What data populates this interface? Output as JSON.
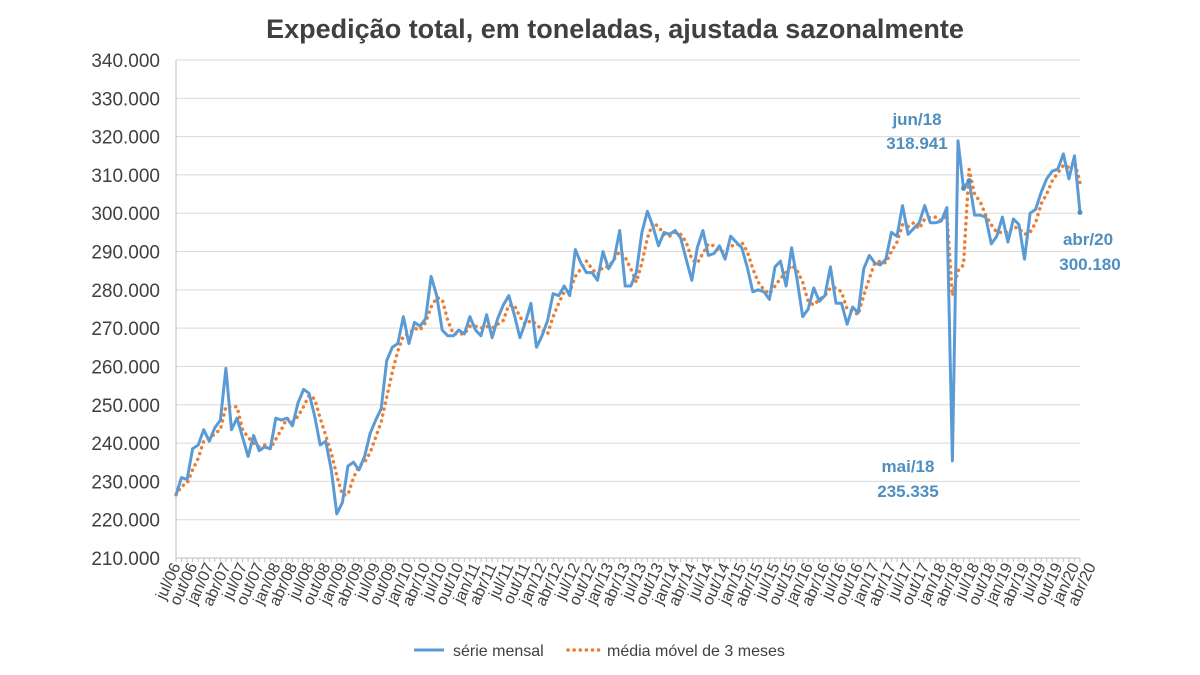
{
  "chart_data": {
    "type": "line",
    "title": "Expedição total, em toneladas, ajustada sazonalmente",
    "xlabel": "",
    "ylabel": "",
    "ylim": [
      210000,
      340000
    ],
    "yticks": [
      210000,
      220000,
      230000,
      240000,
      250000,
      260000,
      270000,
      280000,
      290000,
      300000,
      310000,
      320000,
      330000,
      340000
    ],
    "ytick_labels": [
      "210.000",
      "220.000",
      "230.000",
      "240.000",
      "250.000",
      "260.000",
      "270.000",
      "280.000",
      "290.000",
      "300.000",
      "310.000",
      "320.000",
      "330.000",
      "340.000"
    ],
    "x_start": "jul/06",
    "x_end": "abr/20",
    "x_tick_labels": [
      "jul/06",
      "out/06",
      "jan/07",
      "abr/07",
      "jul/07",
      "out/07",
      "jan/08",
      "abr/08",
      "jul/08",
      "out/08",
      "jan/09",
      "abr/09",
      "jul/09",
      "out/09",
      "jan/10",
      "abr/10",
      "jul/10",
      "out/10",
      "jan/11",
      "abr/11",
      "jul/11",
      "out/11",
      "jan/12",
      "abr/12",
      "jul/12",
      "out/12",
      "jan/13",
      "abr/13",
      "jul/13",
      "out/13",
      "jan/14",
      "abr/14",
      "jul/14",
      "out/14",
      "jan/15",
      "abr/15",
      "jul/15",
      "out/15",
      "jan/16",
      "abr/16",
      "jul/16",
      "out/16",
      "jan/17",
      "abr/17",
      "jul/17",
      "out/17",
      "jan/18",
      "abr/18",
      "jul/18",
      "out/18",
      "jan/19",
      "abr/19",
      "jul/19",
      "out/19",
      "jan/20",
      "abr/20"
    ],
    "grid": true,
    "legend": "bottom",
    "series": [
      {
        "name": "série mensal",
        "color": "#5b9bd5",
        "style": "solid",
        "values": [
          226500,
          231000,
          230500,
          238500,
          239500,
          243500,
          240500,
          244000,
          246000,
          259500,
          243500,
          246500,
          241500,
          236500,
          242000,
          238000,
          239000,
          238500,
          246500,
          246000,
          246500,
          244500,
          250500,
          254000,
          253000,
          247000,
          239500,
          240500,
          233000,
          221500,
          224500,
          234000,
          235000,
          233000,
          236500,
          242500,
          246000,
          249000,
          261500,
          265000,
          266000,
          273000,
          266000,
          271500,
          270500,
          272500,
          283500,
          278500,
          269500,
          268000,
          268000,
          269500,
          268500,
          273000,
          269500,
          268000,
          273500,
          267500,
          272500,
          276000,
          278500,
          273500,
          267500,
          271500,
          276500,
          265000,
          268000,
          272000,
          279000,
          278500,
          281000,
          278500,
          290500,
          287000,
          284500,
          284500,
          282500,
          290000,
          285500,
          288000,
          295500,
          281000,
          281000,
          284500,
          295000,
          300500,
          296500,
          291500,
          295000,
          294500,
          295500,
          293500,
          288000,
          282500,
          291000,
          295500,
          289000,
          289500,
          291500,
          288000,
          294000,
          292500,
          291000,
          286000,
          279500,
          280000,
          279500,
          277500,
          286000,
          287500,
          281000,
          291000,
          282500,
          273000,
          275000,
          280500,
          277000,
          278500,
          286000,
          276500,
          276500,
          271000,
          275500,
          274000,
          285500,
          289000,
          287000,
          286500,
          288000,
          295000,
          294000,
          302000,
          294500,
          296000,
          297500,
          302000,
          297500,
          297500,
          298000,
          301500,
          235335,
          318941,
          306500,
          308500,
          299500,
          299500,
          299000,
          292000,
          294000,
          299000,
          292500,
          298500,
          297000,
          288000,
          300000,
          301000,
          305500,
          309000,
          311000,
          311500,
          315500,
          309000,
          315000,
          300180
        ]
      },
      {
        "name": "média móvel de 3 meses",
        "color": "#ed7d31",
        "style": "dotted",
        "values": [
          226500,
          228750,
          229500,
          233000,
          236000,
          240500,
          241000,
          242500,
          243500,
          249500,
          249500,
          249500,
          243500,
          241500,
          240000,
          239000,
          239500,
          238500,
          241000,
          243500,
          246500,
          245500,
          247000,
          249500,
          252500,
          251500,
          246500,
          242000,
          237500,
          231500,
          226500,
          226500,
          231000,
          234000,
          235000,
          237500,
          241500,
          245500,
          252000,
          258500,
          264000,
          268000,
          268500,
          270000,
          269500,
          271500,
          275500,
          278000,
          277500,
          272000,
          268500,
          268500,
          268500,
          270500,
          270500,
          270000,
          270500,
          270000,
          271000,
          272000,
          276000,
          276000,
          273000,
          271000,
          272000,
          271000,
          269500,
          268500,
          273000,
          276500,
          279500,
          279500,
          283500,
          285500,
          287500,
          285500,
          284000,
          286000,
          286000,
          288000,
          290000,
          288500,
          285500,
          282000,
          287000,
          293500,
          297500,
          296500,
          294500,
          294000,
          295000,
          294500,
          292500,
          288000,
          287000,
          289500,
          292000,
          291500,
          290000,
          290000,
          291500,
          291500,
          292500,
          290000,
          285500,
          282000,
          280000,
          279000,
          281000,
          283000,
          284500,
          286500,
          285000,
          282000,
          277000,
          276000,
          277500,
          278500,
          280500,
          280500,
          279500,
          275000,
          274500,
          273500,
          278500,
          283000,
          287000,
          287500,
          287000,
          290000,
          292500,
          297000,
          296500,
          297500,
          296000,
          298500,
          299000,
          299000,
          298000,
          299500,
          278500,
          285000,
          286500,
          311500,
          305000,
          303000,
          299500,
          297000,
          295000,
          295000,
          295000,
          296500,
          296000,
          294500,
          295000,
          297500,
          302500,
          305000,
          308500,
          310500,
          312500,
          312000,
          313500,
          308000
        ]
      }
    ],
    "annotations": [
      {
        "label": "jun/18",
        "value": "318.941"
      },
      {
        "label": "mai/18",
        "value": "235.335"
      },
      {
        "label": "abr/20",
        "value": "300.180"
      }
    ]
  }
}
